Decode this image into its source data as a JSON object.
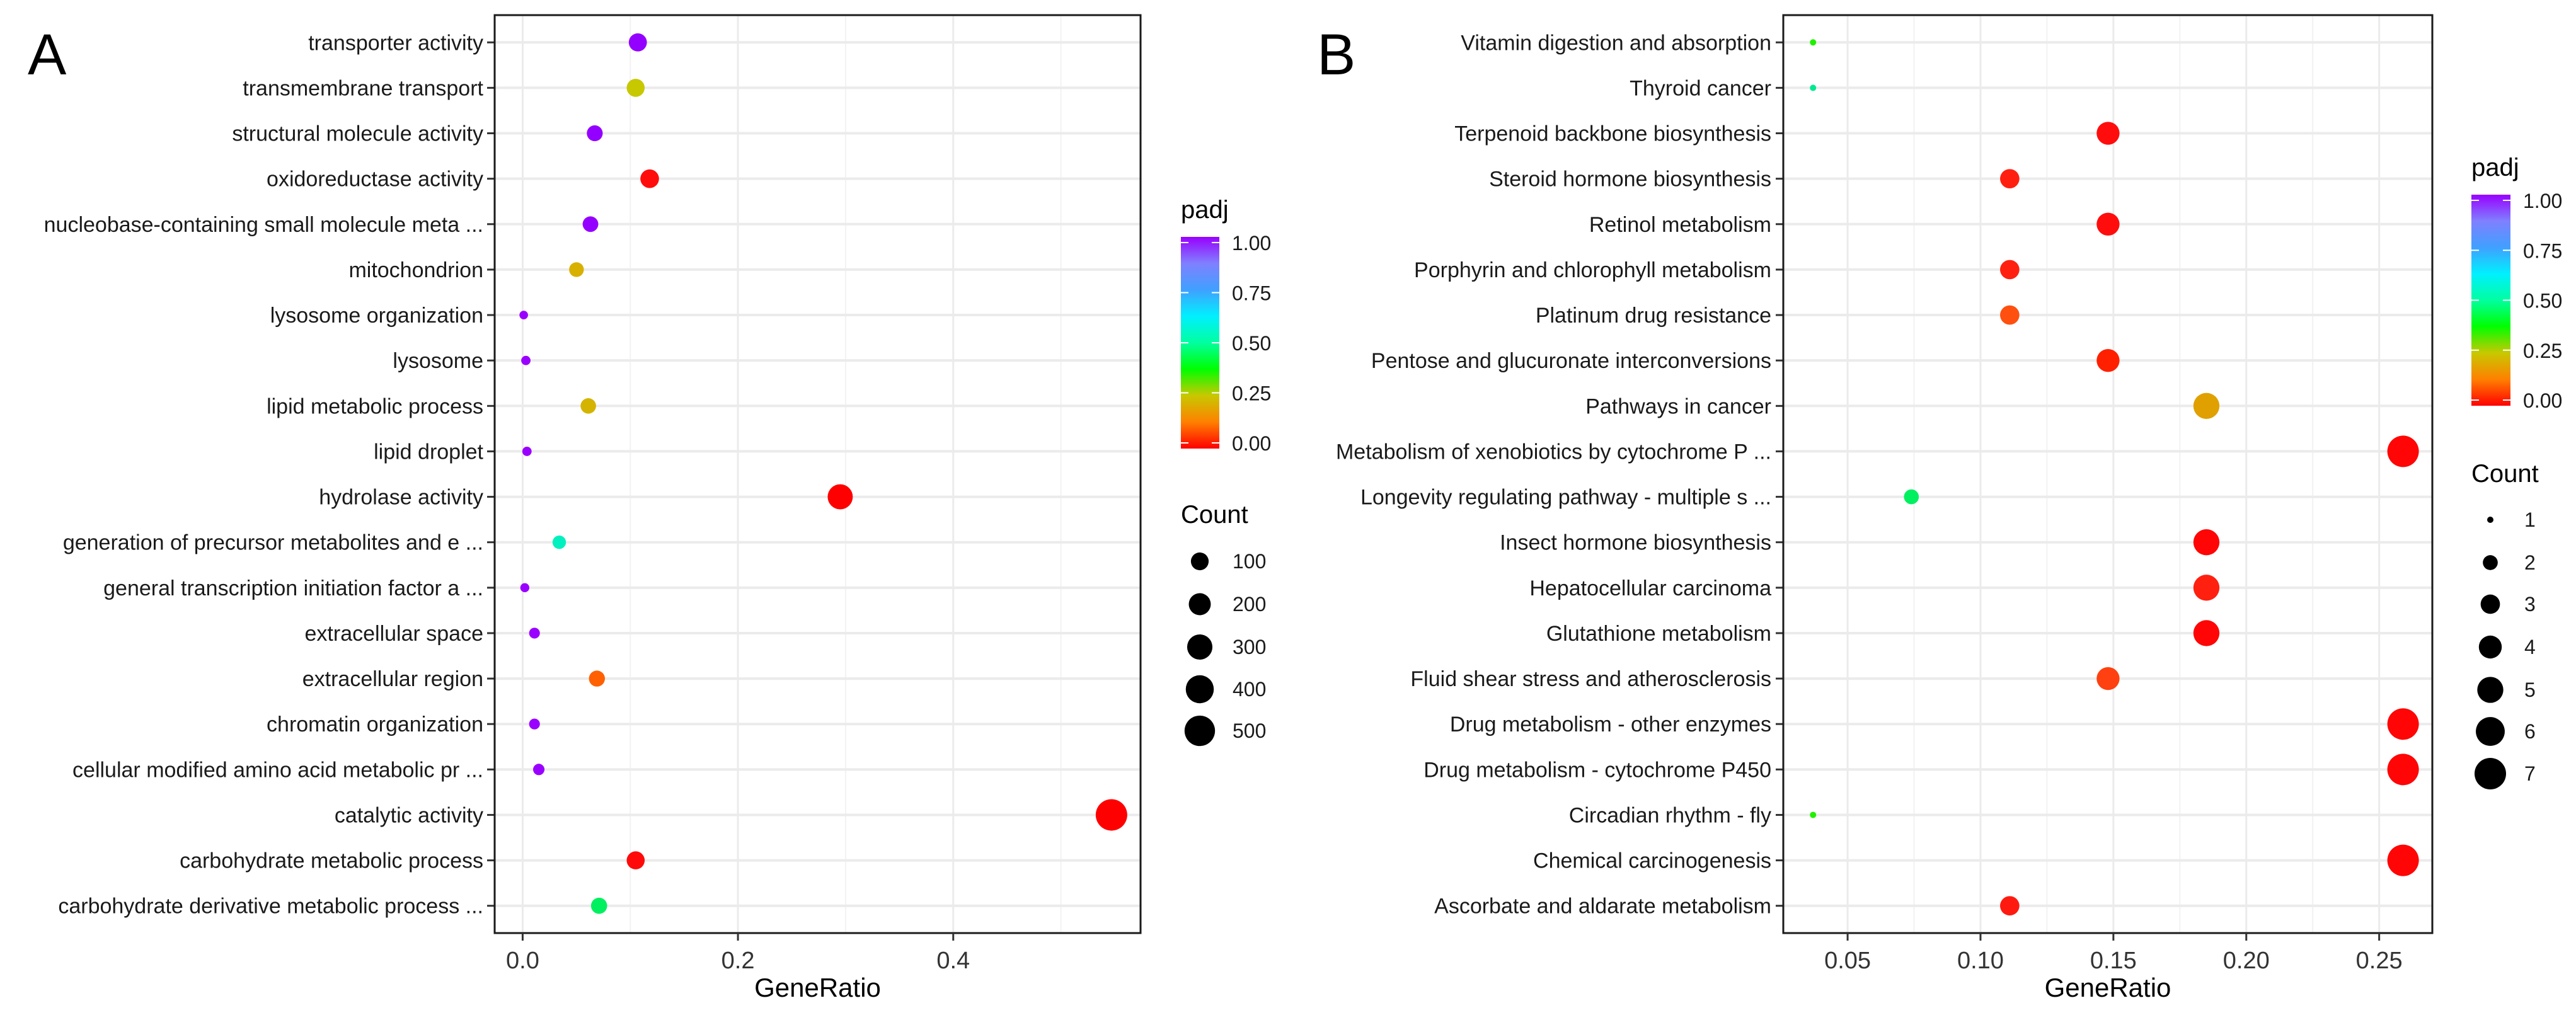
{
  "chart_data": [
    {
      "type": "scatter",
      "panel_label": "A",
      "xlabel": "GeneRatio",
      "xlim": [
        -0.026,
        0.574
      ],
      "xticks": [
        0.0,
        0.2,
        0.4
      ],
      "xtick_labels": [
        "0.0",
        "0.2",
        "0.4"
      ],
      "x_minor": [
        0.1,
        0.3,
        0.5
      ],
      "grid": true,
      "color_legend": {
        "title": "padj",
        "ticks": [
          "0.00",
          "0.25",
          "0.50",
          "0.75",
          "1.00"
        ],
        "tick_values": [
          0,
          0.25,
          0.5,
          0.75,
          1.0
        ],
        "placement": "right",
        "gradient": [
          "#ff0000",
          "#ff8000",
          "#c8c800",
          "#00ff00",
          "#00ffa0",
          "#00f0ff",
          "#40a0ff",
          "#8080ff",
          "#9900ff"
        ]
      },
      "size_legend": {
        "title": "Count",
        "values": [
          100,
          200,
          300,
          400,
          500
        ],
        "labels": [
          "100",
          "200",
          "300",
          "400",
          "500"
        ],
        "placement": "right"
      },
      "points": [
        {
          "term": "transporter activity",
          "x": 0.107,
          "count": 107,
          "padj": 0.98,
          "color": "#9400ff"
        },
        {
          "term": "transmembrane transport",
          "x": 0.105,
          "count": 105,
          "padj": 0.28,
          "color": "#c8c800"
        },
        {
          "term": "structural molecule activity",
          "x": 0.067,
          "count": 67,
          "padj": 0.98,
          "color": "#9400ff"
        },
        {
          "term": "oxidoreductase activity",
          "x": 0.118,
          "count": 118,
          "padj": 0.01,
          "color": "#ff0d0d"
        },
        {
          "term": "nucleobase-containing small molecule meta ...",
          "x": 0.063,
          "count": 63,
          "padj": 0.98,
          "color": "#9400ff"
        },
        {
          "term": "mitochondrion",
          "x": 0.05,
          "count": 50,
          "padj": 0.24,
          "color": "#d8b000"
        },
        {
          "term": "lysosome organization",
          "x": 0.001,
          "count": 2,
          "padj": 1.0,
          "color": "#9900ff"
        },
        {
          "term": "lysosome",
          "x": 0.003,
          "count": 4,
          "padj": 1.0,
          "color": "#9900ff"
        },
        {
          "term": "lipid metabolic process",
          "x": 0.061,
          "count": 61,
          "padj": 0.24,
          "color": "#d4b400"
        },
        {
          "term": "lipid droplet",
          "x": 0.004,
          "count": 4,
          "padj": 1.0,
          "color": "#9900ff"
        },
        {
          "term": "hydrolase activity",
          "x": 0.295,
          "count": 295,
          "padj": 0.0,
          "color": "#ff0000"
        },
        {
          "term": "generation of precursor metabolites and e ...",
          "x": 0.034,
          "count": 34,
          "padj": 0.6,
          "color": "#00f0c0"
        },
        {
          "term": "general transcription initiation factor a ...",
          "x": 0.002,
          "count": 3,
          "padj": 1.0,
          "color": "#9900ff"
        },
        {
          "term": "extracellular space",
          "x": 0.011,
          "count": 11,
          "padj": 1.0,
          "color": "#9900ff"
        },
        {
          "term": "extracellular region",
          "x": 0.069,
          "count": 69,
          "padj": 0.08,
          "color": "#ff6000"
        },
        {
          "term": "chromatin organization",
          "x": 0.011,
          "count": 11,
          "padj": 1.0,
          "color": "#9900ff"
        },
        {
          "term": "cellular modified amino acid metabolic pr ...",
          "x": 0.015,
          "count": 15,
          "padj": 1.0,
          "color": "#9900ff"
        },
        {
          "term": "catalytic activity",
          "x": 0.547,
          "count": 547,
          "padj": 0.0,
          "color": "#ff0000"
        },
        {
          "term": "carbohydrate metabolic process",
          "x": 0.105,
          "count": 105,
          "padj": 0.01,
          "color": "#ff0a0a"
        },
        {
          "term": "carbohydrate derivative metabolic process ...",
          "x": 0.071,
          "count": 71,
          "padj": 0.43,
          "color": "#00f060"
        }
      ]
    },
    {
      "type": "scatter",
      "panel_label": "B",
      "xlabel": "GeneRatio",
      "xlim": [
        0.0258,
        0.27
      ],
      "xticks": [
        0.05,
        0.1,
        0.15,
        0.2,
        0.25
      ],
      "xtick_labels": [
        "0.05",
        "0.10",
        "0.15",
        "0.20",
        "0.25"
      ],
      "x_minor": [
        0.075,
        0.125,
        0.175,
        0.225
      ],
      "grid": true,
      "color_legend": {
        "title": "padj",
        "ticks": [
          "0.00",
          "0.25",
          "0.50",
          "0.75",
          "1.00"
        ],
        "tick_values": [
          0,
          0.25,
          0.5,
          0.75,
          1.0
        ],
        "placement": "right",
        "gradient": [
          "#ff0000",
          "#ff8000",
          "#c8c800",
          "#00ff00",
          "#00ffa0",
          "#00f0ff",
          "#40a0ff",
          "#8080ff",
          "#9900ff"
        ]
      },
      "size_legend": {
        "title": "Count",
        "values": [
          1,
          2,
          3,
          4,
          5,
          6,
          7
        ],
        "labels": [
          "1",
          "2",
          "3",
          "4",
          "5",
          "6",
          "7"
        ],
        "placement": "right"
      },
      "points": [
        {
          "term": "Vitamin digestion and absorption",
          "x": 0.037,
          "count": 1,
          "padj": 0.35,
          "color": "#20f000"
        },
        {
          "term": "Thyroid cancer",
          "x": 0.037,
          "count": 1,
          "padj": 0.5,
          "color": "#00e890"
        },
        {
          "term": "Terpenoid backbone biosynthesis",
          "x": 0.148,
          "count": 4,
          "padj": 0.01,
          "color": "#ff0d0d"
        },
        {
          "term": "Steroid hormone biosynthesis",
          "x": 0.111,
          "count": 3,
          "padj": 0.03,
          "color": "#ff2010"
        },
        {
          "term": "Retinol metabolism",
          "x": 0.148,
          "count": 4,
          "padj": 0.01,
          "color": "#ff0d0d"
        },
        {
          "term": "Porphyrin and chlorophyll metabolism",
          "x": 0.111,
          "count": 3,
          "padj": 0.03,
          "color": "#ff2010"
        },
        {
          "term": "Platinum drug resistance",
          "x": 0.111,
          "count": 3,
          "padj": 0.07,
          "color": "#ff5010"
        },
        {
          "term": "Pentose and glucuronate interconversions",
          "x": 0.148,
          "count": 4,
          "padj": 0.03,
          "color": "#ff2000"
        },
        {
          "term": "Pathways in cancer",
          "x": 0.185,
          "count": 5,
          "padj": 0.2,
          "color": "#e0a000"
        },
        {
          "term": "Metabolism of xenobiotics by cytochrome P ...",
          "x": 0.259,
          "count": 7,
          "padj": 0.0,
          "color": "#ff0505"
        },
        {
          "term": "Longevity regulating pathway - multiple s ...",
          "x": 0.074,
          "count": 2,
          "padj": 0.43,
          "color": "#00f060"
        },
        {
          "term": "Insect hormone biosynthesis",
          "x": 0.185,
          "count": 5,
          "padj": 0.0,
          "color": "#ff0505"
        },
        {
          "term": "Hepatocellular carcinoma",
          "x": 0.185,
          "count": 5,
          "padj": 0.03,
          "color": "#ff2010"
        },
        {
          "term": "Glutathione metabolism",
          "x": 0.185,
          "count": 5,
          "padj": 0.0,
          "color": "#ff0505"
        },
        {
          "term": "Fluid shear stress and atherosclerosis",
          "x": 0.148,
          "count": 4,
          "padj": 0.06,
          "color": "#ff4010"
        },
        {
          "term": "Drug metabolism - other enzymes",
          "x": 0.259,
          "count": 7,
          "padj": 0.0,
          "color": "#ff0505"
        },
        {
          "term": "Drug metabolism - cytochrome P450",
          "x": 0.259,
          "count": 7,
          "padj": 0.0,
          "color": "#ff0505"
        },
        {
          "term": "Circadian rhythm - fly",
          "x": 0.037,
          "count": 1,
          "padj": 0.35,
          "color": "#20f000"
        },
        {
          "term": "Chemical carcinogenesis",
          "x": 0.259,
          "count": 7,
          "padj": 0.0,
          "color": "#ff0505"
        },
        {
          "term": "Ascorbate and aldarate metabolism",
          "x": 0.111,
          "count": 3,
          "padj": 0.02,
          "color": "#ff1a10"
        }
      ]
    }
  ]
}
